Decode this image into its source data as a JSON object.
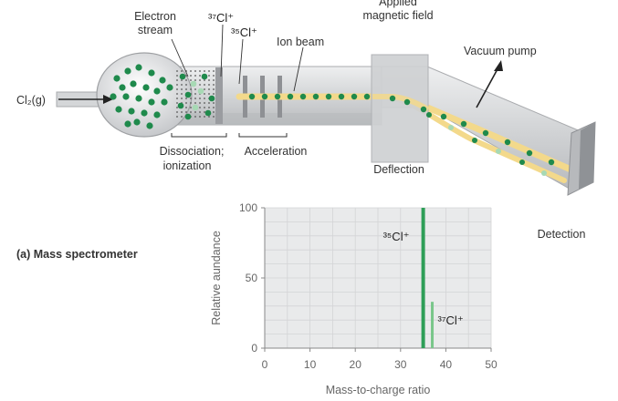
{
  "diagram": {
    "caption": "(a) Mass spectrometer",
    "labels": {
      "inlet": "Cl₂(g)",
      "electron_stream": [
        "Electron",
        "stream"
      ],
      "cl37_top": "³⁷Cl⁺",
      "cl35_top": "³⁵Cl⁺",
      "ion_beam": "Ion beam",
      "magnetic_field": [
        "Applied",
        "magnetic field"
      ],
      "vacuum_pump": "Vacuum pump",
      "dissociation": [
        "Dissociation;",
        "ionization"
      ],
      "acceleration": "Acceleration",
      "deflection": "Deflection",
      "detection": "Detection"
    },
    "colors": {
      "particle_green": "#1f8a4c",
      "beam_yellow": "#f3d98b",
      "tube_gray": "#c9cbcd",
      "graph_bg": "#e9eaeb",
      "peak_green": "#2e9e57",
      "minor_peak_green": "#79c68a"
    }
  },
  "chart_data": {
    "type": "bar",
    "xlabel": "Mass-to-charge ratio",
    "ylabel": "Relative aundance",
    "xlim": [
      0,
      50
    ],
    "ylim": [
      0,
      100
    ],
    "xticks": [
      "0",
      "10",
      "20",
      "30",
      "40",
      "50"
    ],
    "yticks": [
      "0",
      "50",
      "100"
    ],
    "grid": true,
    "bars": [
      {
        "x": 35,
        "value": 100,
        "label": "³⁵Cl⁺",
        "color": "#2e9e57"
      },
      {
        "x": 37,
        "value": 33,
        "label": "³⁷Cl⁺",
        "color": "#79c68a"
      }
    ]
  }
}
